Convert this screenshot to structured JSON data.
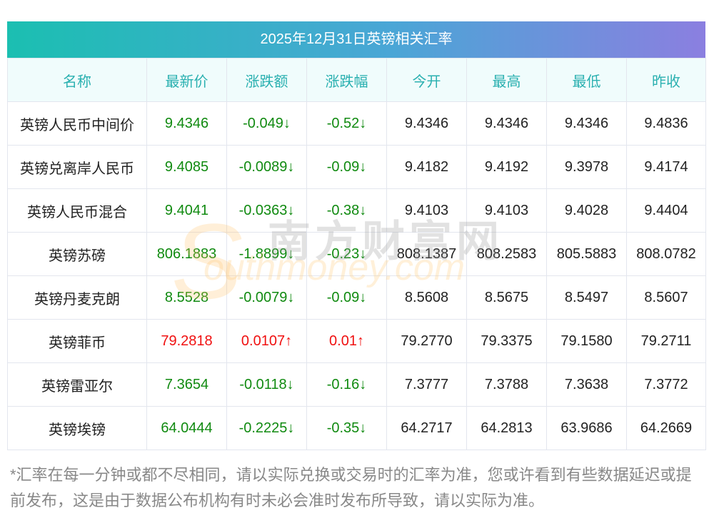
{
  "title": "2025年12月31日英镑相关汇率",
  "columns": [
    "名称",
    "最新价",
    "涨跌额",
    "涨跌幅",
    "今开",
    "最高",
    "最低",
    "昨收"
  ],
  "rows": [
    {
      "name": "英镑人民币中间价",
      "latest": "9.4346",
      "change": "-0.049↓",
      "pct": "-0.52↓",
      "open": "9.4346",
      "high": "9.4346",
      "low": "9.4346",
      "prev": "9.4836",
      "dir": "down"
    },
    {
      "name": "英镑兑离岸人民币",
      "latest": "9.4085",
      "change": "-0.0089↓",
      "pct": "-0.09↓",
      "open": "9.4182",
      "high": "9.4192",
      "low": "9.3978",
      "prev": "9.4174",
      "dir": "down"
    },
    {
      "name": "英镑人民币混合",
      "latest": "9.4041",
      "change": "-0.0363↓",
      "pct": "-0.38↓",
      "open": "9.4103",
      "high": "9.4103",
      "low": "9.4028",
      "prev": "9.4404",
      "dir": "down"
    },
    {
      "name": "英镑苏磅",
      "latest": "806.1883",
      "change": "-1.8899↓",
      "pct": "-0.23↓",
      "open": "808.1387",
      "high": "808.2583",
      "low": "805.5883",
      "prev": "808.0782",
      "dir": "down"
    },
    {
      "name": "英镑丹麦克朗",
      "latest": "8.5528",
      "change": "-0.0079↓",
      "pct": "-0.09↓",
      "open": "8.5608",
      "high": "8.5675",
      "low": "8.5497",
      "prev": "8.5607",
      "dir": "down"
    },
    {
      "name": "英镑菲币",
      "latest": "79.2818",
      "change": "0.0107↑",
      "pct": "0.01↑",
      "open": "79.2770",
      "high": "79.3375",
      "low": "79.1580",
      "prev": "79.2711",
      "dir": "up"
    },
    {
      "name": "英镑雷亚尔",
      "latest": "7.3654",
      "change": "-0.0118↓",
      "pct": "-0.16↓",
      "open": "7.3777",
      "high": "7.3788",
      "low": "7.3638",
      "prev": "7.3772",
      "dir": "down"
    },
    {
      "name": "英镑埃镑",
      "latest": "64.0444",
      "change": "-0.2225↓",
      "pct": "-0.35↓",
      "open": "64.2717",
      "high": "64.2813",
      "low": "63.9686",
      "prev": "64.2669",
      "dir": "down"
    }
  ],
  "watermark": {
    "cn": "南方财富网",
    "en": "southmoney.com"
  },
  "footnote": "*汇率在每一分钟或都不尽相同，请以实际兑换或交易时的汇率为准，您或许看到有些数据延迟或提前发布，这是由于数据公布机构有时未必会准时发布所导致，请以实际为准。",
  "colors": {
    "up": "#f01010",
    "down": "#108a10",
    "header_text": "#2ab0b0"
  }
}
